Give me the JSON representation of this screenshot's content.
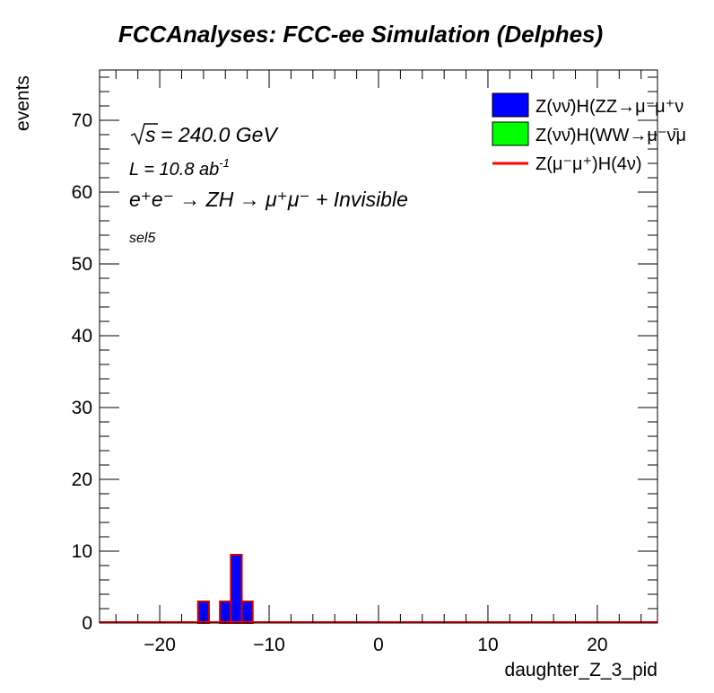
{
  "chart_data": {
    "type": "bar",
    "title": "FCCAnalyses: FCC-ee Simulation (Delphes)",
    "xlabel": "daughter_Z_3_pid",
    "ylabel": "events",
    "xlim": [
      -25.5,
      25.5
    ],
    "ylim": [
      0,
      77
    ],
    "x_ticks": [
      -20,
      -10,
      0,
      10,
      20
    ],
    "y_ticks": [
      0,
      10,
      20,
      30,
      40,
      50,
      60,
      70
    ],
    "annotations": {
      "sqrt_s": "= 240.0 GeV",
      "lumi": "L = 10.8 ab",
      "lumi_exp": "-1",
      "process": "e⁺e⁻ → ZH → μ⁺μ⁻ + Invisible",
      "selection": "sel5"
    },
    "bin_edges": [
      -16.5,
      -15.5,
      -14.5,
      -13.5,
      -12.5,
      -11.5
    ],
    "series": [
      {
        "name": "Z(νν̄)H(ZZ→μ⁻μ⁺ν",
        "color": "#0000ff",
        "style": "filled",
        "values": [
          3.0,
          0.0,
          3.0,
          9.5,
          3.0
        ]
      },
      {
        "name": "Z(νν̄)H(WW→μ⁻ν̄μ",
        "color": "#00ff00",
        "style": "filled",
        "values": [
          0,
          0,
          0,
          0,
          0
        ]
      },
      {
        "name": "Z(μ⁻μ⁺)H(4ν)",
        "color": "#ff0000",
        "style": "line",
        "values": [
          0,
          0,
          0,
          0,
          0
        ]
      }
    ],
    "legend_position": "top-right",
    "grid": false
  }
}
